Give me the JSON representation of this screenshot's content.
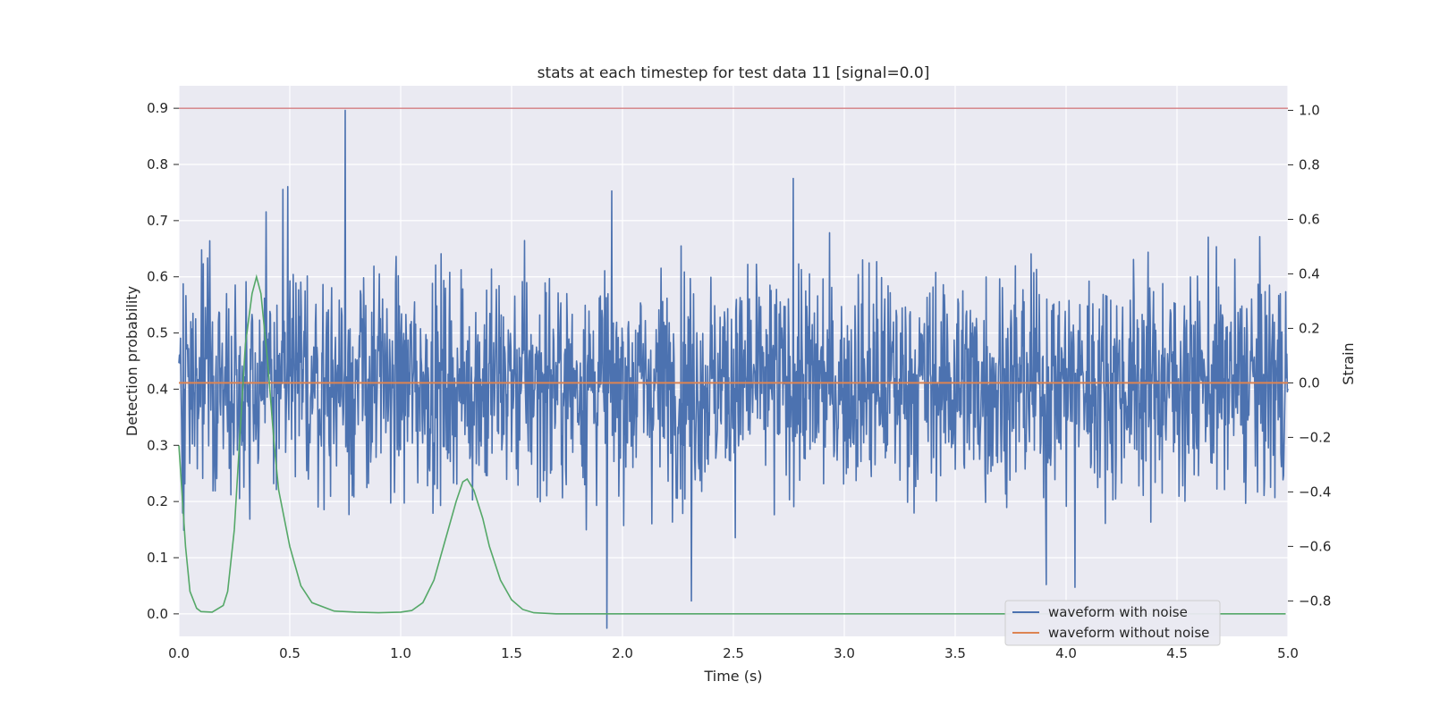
{
  "chart_data": {
    "type": "line",
    "title": "stats at each timestep for test data 11 [signal=0.0]",
    "xlabel": "Time (s)",
    "ylabel_left": "Detection probability",
    "ylabel_right": "Strain",
    "xlim": [
      0.0,
      5.0
    ],
    "ylim_left": [
      -0.04,
      0.94
    ],
    "ylim_right": [
      -0.93,
      1.09
    ],
    "x_ticks": [
      "0.0",
      "0.5",
      "1.0",
      "1.5",
      "2.0",
      "2.5",
      "3.0",
      "3.5",
      "4.0",
      "4.5",
      "5.0"
    ],
    "y_ticks_left": [
      "0.0",
      "0.1",
      "0.2",
      "0.3",
      "0.4",
      "0.5",
      "0.6",
      "0.7",
      "0.8",
      "0.9"
    ],
    "y_ticks_right": [
      "−0.8",
      "−0.6",
      "−0.4",
      "−0.2",
      "0.0",
      "0.2",
      "0.4",
      "0.6",
      "0.8",
      "1.0"
    ],
    "grid": true,
    "legend_position": "bottom-right",
    "colors": {
      "waveform_with_noise": "#4c72b0",
      "waveform_without_noise": "#dd8452",
      "detection_probability": "#55a868",
      "threshold": "#c44e52",
      "background": "#eaeaf2",
      "grid": "#ffffff"
    },
    "series": [
      {
        "name": "waveform with noise",
        "axis": "right",
        "style": "noise",
        "samples": 2048,
        "std": 0.2,
        "spikes": [
          [
            0.75,
            1.0
          ],
          [
            1.93,
            -0.9
          ],
          [
            2.77,
            0.75
          ],
          [
            0.47,
            0.71
          ],
          [
            0.49,
            0.72
          ],
          [
            2.31,
            -0.8
          ],
          [
            3.91,
            -0.74
          ],
          [
            4.04,
            -0.75
          ]
        ]
      },
      {
        "name": "waveform without noise",
        "axis": "right",
        "x": [
          0.0,
          5.0
        ],
        "y": [
          0.0,
          0.0
        ]
      },
      {
        "name": "",
        "axis": "left",
        "x": [
          0.0,
          0.03,
          0.05,
          0.08,
          0.1,
          0.15,
          0.2,
          0.22,
          0.25,
          0.28,
          0.3,
          0.33,
          0.35,
          0.37,
          0.4,
          0.43,
          0.45,
          0.5,
          0.55,
          0.6,
          0.7,
          0.8,
          0.9,
          1.0,
          1.05,
          1.1,
          1.15,
          1.2,
          1.25,
          1.28,
          1.3,
          1.33,
          1.37,
          1.4,
          1.45,
          1.5,
          1.55,
          1.6,
          1.7,
          2.0,
          2.5,
          3.0,
          3.5,
          4.0,
          4.5,
          4.99
        ],
        "y": [
          0.3,
          0.12,
          0.04,
          0.01,
          0.004,
          0.003,
          0.015,
          0.04,
          0.15,
          0.35,
          0.48,
          0.57,
          0.6,
          0.57,
          0.45,
          0.3,
          0.22,
          0.12,
          0.05,
          0.02,
          0.005,
          0.003,
          0.002,
          0.003,
          0.006,
          0.02,
          0.06,
          0.13,
          0.2,
          0.235,
          0.24,
          0.22,
          0.17,
          0.12,
          0.06,
          0.025,
          0.008,
          0.002,
          0.0,
          0.0,
          0.0,
          0.0,
          0.0,
          0.0,
          0.0,
          0.0
        ]
      },
      {
        "name": "",
        "axis": "left",
        "x": [
          0.0,
          5.0
        ],
        "y": [
          0.9,
          0.9
        ]
      }
    ]
  }
}
